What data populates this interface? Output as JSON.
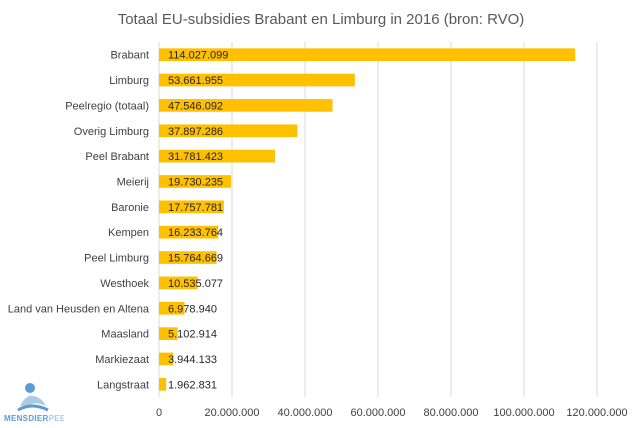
{
  "chart_data": {
    "type": "bar",
    "orientation": "horizontal",
    "title": "Totaal EU-subsidies Brabant en Limburg in 2016 (bron: RVO)",
    "categories": [
      "Brabant",
      "Limburg",
      "Peelregio (totaal)",
      "Overig Limburg",
      "Peel Brabant",
      "Meierij",
      "Baronie",
      "Kempen",
      "Peel Limburg",
      "Westhoek",
      "Land van Heusden en Altena",
      "Maasland",
      "Markiezaat",
      "Langstraat"
    ],
    "values": [
      114027099,
      53661955,
      47546092,
      37897286,
      31781423,
      19730235,
      17757781,
      16233764,
      15764669,
      10535077,
      6978940,
      5102914,
      3944133,
      1962831
    ],
    "data_labels": [
      "114.027.099",
      "53.661.955",
      "47.546.092",
      "37.897.286",
      "31.781.423",
      "19.730.235",
      "17.757.781",
      "16.233.764",
      "15.764.669",
      "10.535.077",
      "6.978.940",
      "5.102.914",
      "3.944.133",
      "1.962.831"
    ],
    "xlim": [
      0,
      120000000
    ],
    "x_ticks": [
      0,
      20000000,
      40000000,
      60000000,
      80000000,
      100000000,
      120000000
    ],
    "x_tick_labels": [
      "0",
      "20.000.000",
      "40.000.000",
      "60.000.000",
      "80.000.000",
      "100.000.000",
      "120.000.000"
    ],
    "grid": true,
    "bar_color": "#FFC000",
    "grid_color": "#D9D9D9"
  },
  "logo": {
    "text_part1": "MENSDIER",
    "text_part2": "PEEL",
    "text_full": "MENSDIERPEEL",
    "color1": "#5B9BD5",
    "color2": "#A9CCE3"
  }
}
